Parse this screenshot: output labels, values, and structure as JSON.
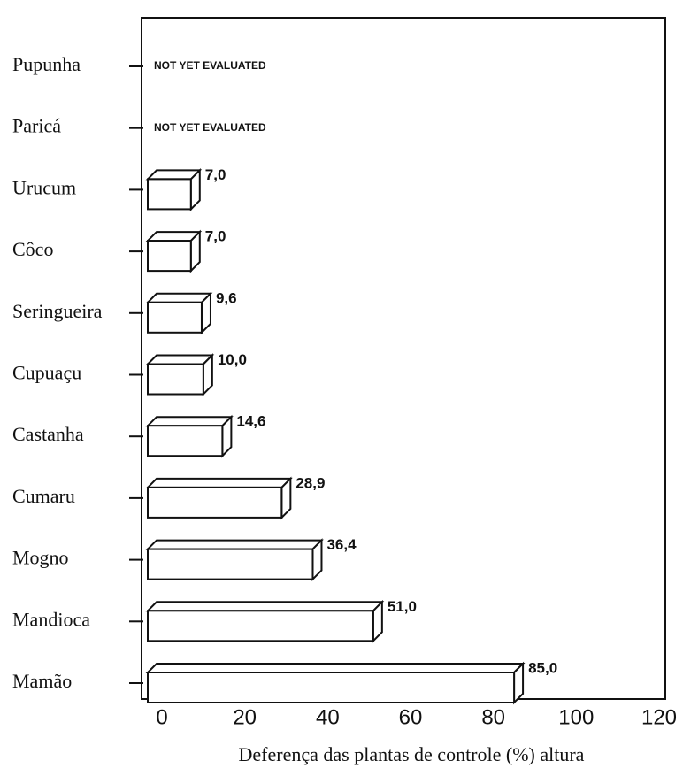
{
  "chart_data": {
    "type": "bar3d",
    "categories": [
      "Pupunha",
      "Paricá",
      "Urucum",
      "Côco",
      "Seringueira",
      "Cupuaçu",
      "Castanha",
      "Cumaru",
      "Mogno",
      "Mandioca",
      "Mamão"
    ],
    "values": [
      null,
      null,
      7.0,
      7.0,
      9.6,
      10.0,
      14.6,
      28.9,
      36.4,
      51.0,
      85.0
    ],
    "value_labels": [
      "NOT YET EVALUATED",
      "NOT YET EVALUATED",
      "7,0",
      "7,0",
      "9,6",
      "10,0",
      "14,6",
      "28,9",
      "36,4",
      "51,0",
      "85,0"
    ],
    "x_label": "Deferença das plantas de controle (%) altura",
    "xlim": [
      0,
      120
    ],
    "xticks": [
      0,
      20,
      40,
      60,
      80,
      100,
      120
    ],
    "color": "#ffffff"
  }
}
